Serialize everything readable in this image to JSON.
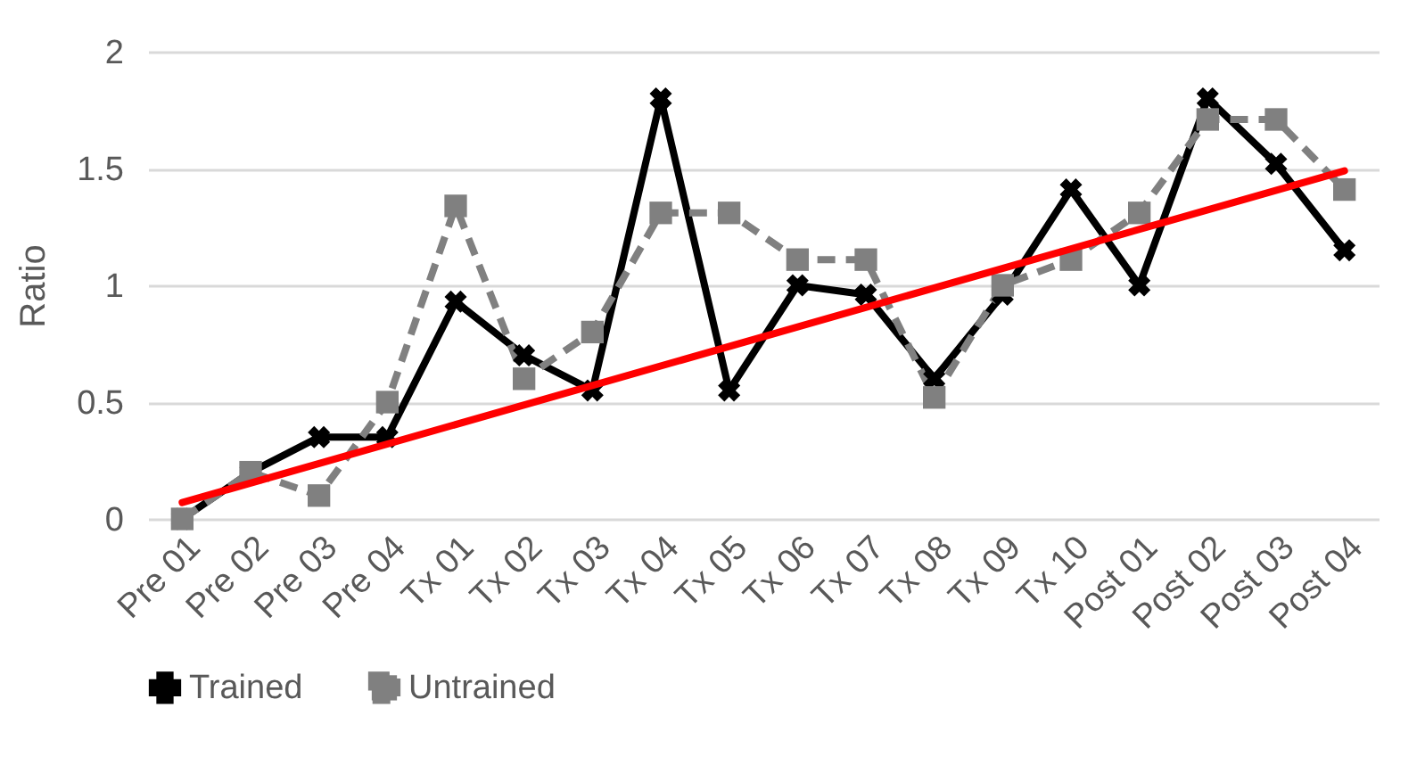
{
  "chart_data": {
    "type": "line",
    "ylabel": "Ratio",
    "categories": [
      "Pre 01",
      "Pre 02",
      "Pre 03",
      "Pre 04",
      "Tx 01",
      "Tx 02",
      "Tx 03",
      "Tx 04",
      "Tx 05",
      "Tx 06",
      "Tx 07",
      "Tx 08",
      "Tx 09",
      "Tx 10",
      "Post 01",
      "Post 02",
      "Post 03",
      "Post 04"
    ],
    "series": [
      {
        "name": "Trained",
        "color": "#000000",
        "marker": "cross",
        "line_style": "solid",
        "values": [
          0,
          0.2,
          0.35,
          0.35,
          0.93,
          0.7,
          0.55,
          1.8,
          0.55,
          1.0,
          0.96,
          0.6,
          0.96,
          1.41,
          1.0,
          1.8,
          1.52,
          1.15
        ]
      },
      {
        "name": "Untrained",
        "color": "#808080",
        "marker": "square",
        "line_style": "dashed",
        "values": [
          0,
          0.2,
          0.1,
          0.5,
          1.34,
          0.6,
          0.8,
          1.31,
          1.31,
          1.11,
          1.11,
          0.52,
          1.0,
          1.11,
          1.31,
          1.71,
          1.71,
          1.41
        ]
      },
      {
        "type": "line",
        "color": "#ff0000",
        "marker": "none",
        "line_style": "solid",
        "x": [
          "Pre 01",
          "Post 04"
        ],
        "values": [
          0.07,
          1.49
        ]
      }
    ],
    "ylim": [
      0,
      2
    ],
    "yticks": [
      0,
      0.5,
      1,
      1.5,
      2
    ],
    "grid": "y",
    "legend": "bottom"
  }
}
